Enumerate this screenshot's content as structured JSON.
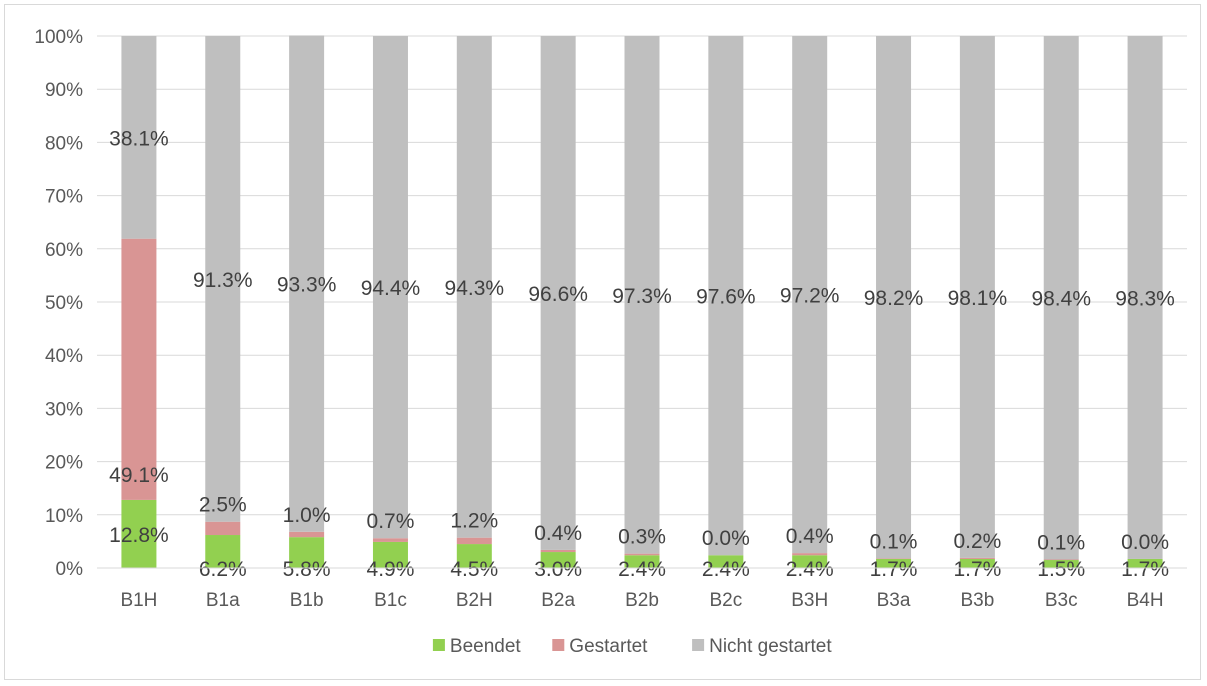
{
  "chart_data": {
    "type": "bar",
    "stacked": true,
    "percent": true,
    "categories": [
      "B1H",
      "B1a",
      "B1b",
      "B1c",
      "B2H",
      "B2a",
      "B2b",
      "B2c",
      "B3H",
      "B3a",
      "B3b",
      "B3c",
      "B4H"
    ],
    "series": [
      {
        "name": "Beendet",
        "color": "#92d050",
        "values": [
          12.8,
          6.2,
          5.8,
          4.9,
          4.5,
          3.0,
          2.4,
          2.4,
          2.4,
          1.7,
          1.7,
          1.5,
          1.7
        ],
        "labels": [
          "12.8%",
          "6.2%",
          "5.8%",
          "4.9%",
          "4.5%",
          "3.0%",
          "2.4%",
          "2.4%",
          "2.4%",
          "1.7%",
          "1.7%",
          "1.5%",
          "1.7%"
        ]
      },
      {
        "name": "Gestartet",
        "color": "#d99594",
        "values": [
          49.1,
          2.5,
          1.0,
          0.7,
          1.2,
          0.4,
          0.3,
          0.0,
          0.4,
          0.1,
          0.2,
          0.1,
          0.0
        ],
        "labels": [
          "49.1%",
          "2.5%",
          "1.0%",
          "0.7%",
          "1.2%",
          "0.4%",
          "0.3%",
          "0.0%",
          "0.4%",
          "0.1%",
          "0.2%",
          "0.1%",
          "0.0%"
        ]
      },
      {
        "name": "Nicht gestartet",
        "color": "#bfbfbf",
        "values": [
          38.1,
          91.3,
          93.3,
          94.4,
          94.3,
          96.6,
          97.3,
          97.6,
          97.2,
          98.2,
          98.1,
          98.4,
          98.3
        ],
        "labels": [
          "38.1%",
          "91.3%",
          "93.3%",
          "94.4%",
          "94.3%",
          "96.6%",
          "97.3%",
          "97.6%",
          "97.2%",
          "98.2%",
          "98.1%",
          "98.4%",
          "98.3%"
        ]
      }
    ],
    "ylim": [
      0,
      100
    ],
    "yticks": [
      "0%",
      "10%",
      "20%",
      "30%",
      "40%",
      "50%",
      "60%",
      "70%",
      "80%",
      "90%",
      "100%"
    ],
    "grid": true,
    "legend": "bottom",
    "title": "",
    "xlabel": "",
    "ylabel": ""
  }
}
